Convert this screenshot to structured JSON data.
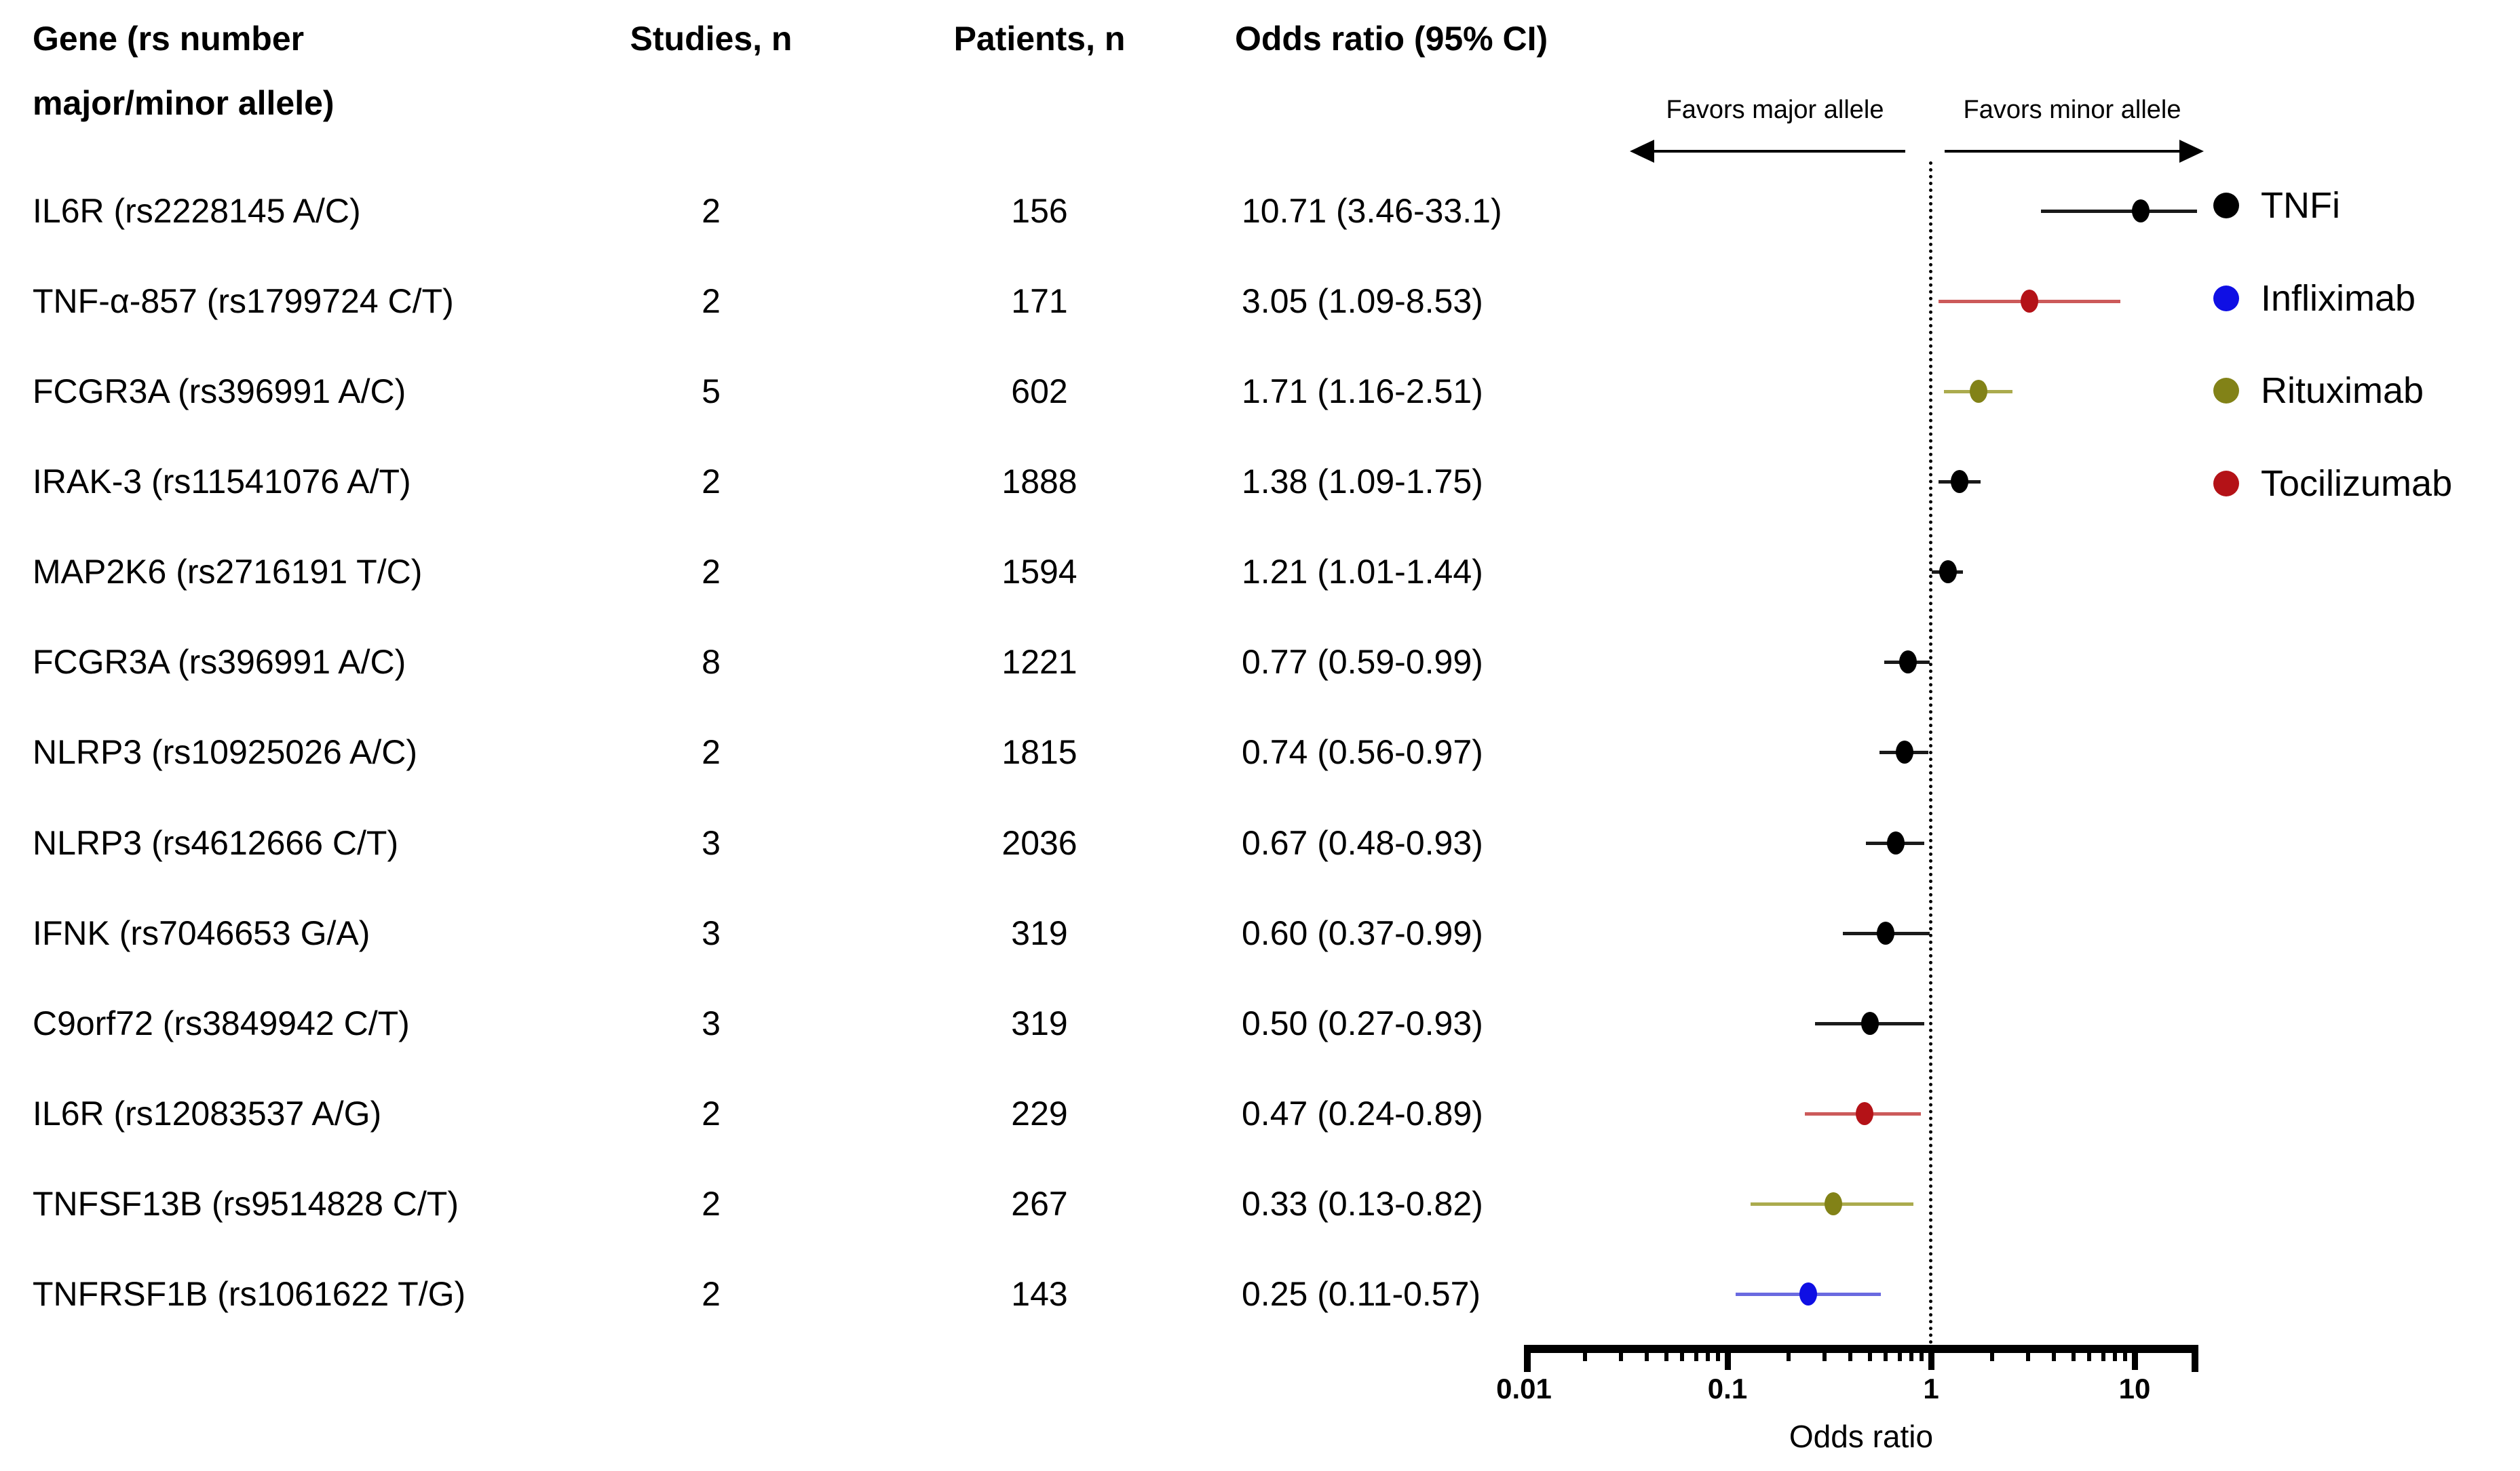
{
  "table": {
    "headers": {
      "gene_line1": "Gene (rs number",
      "gene_line2": "major/minor allele)",
      "studies": "Studies, n",
      "patients": "Patients, n",
      "odds": "Odds ratio (95% CI)"
    }
  },
  "plot": {
    "favors_major": "Favors major allele",
    "favors_minor": "Favors minor allele",
    "axis_title": "Odds ratio",
    "reference_line_color": "#000000"
  },
  "legend": [
    {
      "id": "tnfi",
      "label": "TNFi",
      "color": "#000000",
      "line_color": "#1a1a1a"
    },
    {
      "id": "infliximab",
      "label": "Infliximab",
      "color": "#0f0fe4",
      "line_color": "#6a6ae0"
    },
    {
      "id": "rituximab",
      "label": "Rituximab",
      "color": "#828217",
      "line_color": "#abab4e"
    },
    {
      "id": "tocilizumab",
      "label": "Tocilizumab",
      "color": "#b41217",
      "line_color": "#cc5a5a"
    }
  ],
  "chart_data": {
    "type": "scatter",
    "subtype": "forest-plot",
    "title": "",
    "xlabel": "Odds ratio",
    "ylabel": "",
    "x_scale": "log10",
    "xlim": [
      0.01,
      20
    ],
    "x_ticks": [
      "0.01",
      "0.1",
      "1",
      "10"
    ],
    "minor_tick_decades": [
      0.01,
      0.1,
      1
    ],
    "minor_tick_multipliers": [
      2,
      3,
      4,
      5,
      6,
      7,
      8,
      9
    ],
    "vline_at": 1,
    "grid": false,
    "legend_position": "right",
    "annotations": [
      "Favors major allele",
      "Favors minor allele"
    ],
    "rows": [
      {
        "gene": "IL6R (rs2228145 A/C)",
        "studies": "2",
        "patients": "156",
        "or_label": "10.71 (3.46-33.1)",
        "or": 10.71,
        "ci_low": 3.46,
        "ci_high": 33.1,
        "group": "tnfi"
      },
      {
        "gene": "TNF-α-857 (rs1799724 C/T)",
        "studies": "2",
        "patients": "171",
        "or_label": "3.05 (1.09-8.53)",
        "or": 3.05,
        "ci_low": 1.09,
        "ci_high": 8.53,
        "group": "tocilizumab"
      },
      {
        "gene": "FCGR3A (rs396991 A/C)",
        "studies": "5",
        "patients": "602",
        "or_label": "1.71 (1.16-2.51)",
        "or": 1.71,
        "ci_low": 1.16,
        "ci_high": 2.51,
        "group": "rituximab"
      },
      {
        "gene": "IRAK-3 (rs11541076 A/T)",
        "studies": "2",
        "patients": "1888",
        "or_label": "1.38 (1.09-1.75)",
        "or": 1.38,
        "ci_low": 1.09,
        "ci_high": 1.75,
        "group": "tnfi"
      },
      {
        "gene": "MAP2K6 (rs2716191 T/C)",
        "studies": "2",
        "patients": "1594",
        "or_label": "1.21 (1.01-1.44)",
        "or": 1.21,
        "ci_low": 1.01,
        "ci_high": 1.44,
        "group": "tnfi"
      },
      {
        "gene": "FCGR3A (rs396991 A/C)",
        "studies": "8",
        "patients": "1221",
        "or_label": "0.77 (0.59-0.99)",
        "or": 0.77,
        "ci_low": 0.59,
        "ci_high": 0.99,
        "group": "tnfi"
      },
      {
        "gene": "NLRP3 (rs10925026 A/C)",
        "studies": "2",
        "patients": "1815",
        "or_label": "0.74 (0.56-0.97)",
        "or": 0.74,
        "ci_low": 0.56,
        "ci_high": 0.97,
        "group": "tnfi"
      },
      {
        "gene": "NLRP3 (rs4612666 C/T)",
        "studies": "3",
        "patients": "2036",
        "or_label": "0.67 (0.48-0.93)",
        "or": 0.67,
        "ci_low": 0.48,
        "ci_high": 0.93,
        "group": "tnfi"
      },
      {
        "gene": "IFNK (rs7046653 G/A)",
        "studies": "3",
        "patients": "319",
        "or_label": "0.60 (0.37-0.99)",
        "or": 0.6,
        "ci_low": 0.37,
        "ci_high": 0.99,
        "group": "tnfi"
      },
      {
        "gene": "C9orf72 (rs3849942 C/T)",
        "studies": "3",
        "patients": "319",
        "or_label": "0.50 (0.27-0.93)",
        "or": 0.5,
        "ci_low": 0.27,
        "ci_high": 0.93,
        "group": "tnfi"
      },
      {
        "gene": "IL6R (rs12083537 A/G)",
        "studies": "2",
        "patients": "229",
        "or_label": "0.47 (0.24-0.89)",
        "or": 0.47,
        "ci_low": 0.24,
        "ci_high": 0.89,
        "group": "tocilizumab"
      },
      {
        "gene": "TNFSF13B (rs9514828 C/T)",
        "studies": "2",
        "patients": "267",
        "or_label": "0.33 (0.13-0.82)",
        "or": 0.33,
        "ci_low": 0.13,
        "ci_high": 0.82,
        "group": "rituximab"
      },
      {
        "gene": "TNFRSF1B (rs1061622 T/G)",
        "studies": "2",
        "patients": "143",
        "or_label": "0.25 (0.11-0.57)",
        "or": 0.25,
        "ci_low": 0.11,
        "ci_high": 0.57,
        "group": "infliximab"
      }
    ]
  }
}
